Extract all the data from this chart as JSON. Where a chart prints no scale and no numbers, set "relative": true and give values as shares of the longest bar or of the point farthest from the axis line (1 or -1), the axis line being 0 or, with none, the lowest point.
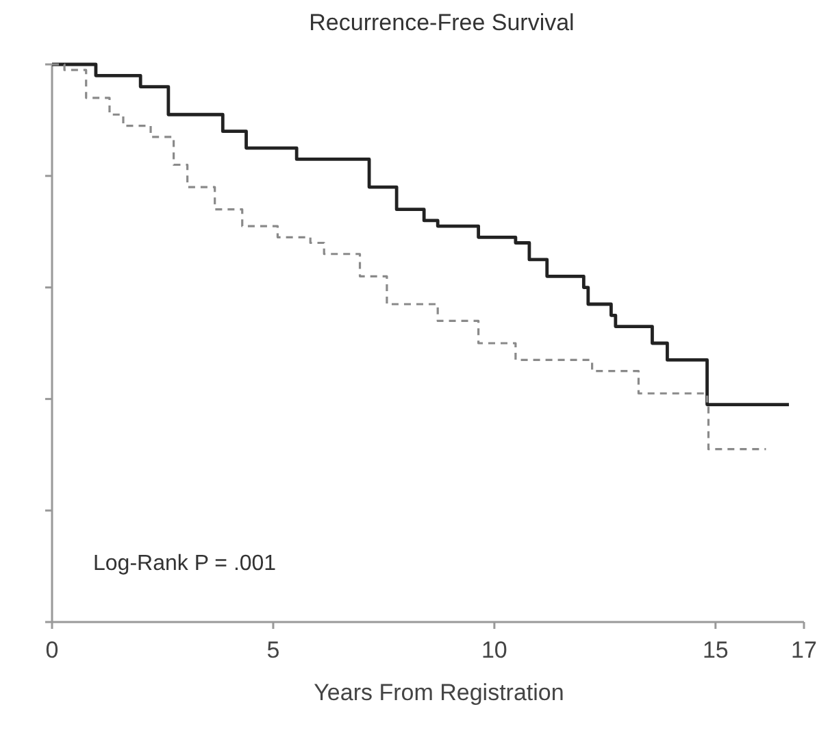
{
  "chart_data": {
    "type": "step",
    "title": "Recurrence-Free Survival",
    "xlabel": "Years From Registration",
    "relative": true,
    "xlim": [
      0,
      17
    ],
    "xticks": [
      0,
      5,
      10,
      15,
      17
    ],
    "grid": false,
    "annotations": [
      "Log-Rank P = .001"
    ],
    "series": [
      {
        "color": "#222222",
        "line_style": "solid",
        "x": [
          0,
          0.37,
          0.99,
          2.0,
          2.63,
          3.86,
          4.39,
          5.53,
          6.15,
          7.17,
          7.79,
          8.41,
          8.72,
          9.64,
          10.48,
          10.79,
          11.19,
          12.02,
          12.12,
          12.64,
          12.74,
          13.57,
          13.88,
          13.91,
          14.74,
          14.81,
          16.66
        ],
        "values": [
          1,
          1,
          0.98,
          0.96,
          0.91,
          0.88,
          0.85,
          0.83,
          0.83,
          0.78,
          0.74,
          0.72,
          0.71,
          0.69,
          0.68,
          0.65,
          0.62,
          0.6,
          0.57,
          0.55,
          0.53,
          0.5,
          0.5,
          0.47,
          0.47,
          0.39,
          0.39
        ]
      },
      {
        "color": "#8a8a8a",
        "line_style": "dashed",
        "x": [
          0,
          0.28,
          0.77,
          1.3,
          1.61,
          2.23,
          2.75,
          3.06,
          3.68,
          4.3,
          5.1,
          5.84,
          6.15,
          6.96,
          7.57,
          8.32,
          8.72,
          9.64,
          10.48,
          11.5,
          12.21,
          12.83,
          13.26,
          14.68,
          14.81,
          14.84,
          16.14
        ],
        "values": [
          1,
          0.99,
          0.94,
          0.91,
          0.89,
          0.87,
          0.82,
          0.78,
          0.74,
          0.71,
          0.69,
          0.68,
          0.66,
          0.62,
          0.57,
          0.57,
          0.54,
          0.5,
          0.47,
          0.47,
          0.45,
          0.45,
          0.41,
          0.41,
          0.39,
          0.31,
          0.31
        ]
      }
    ]
  }
}
